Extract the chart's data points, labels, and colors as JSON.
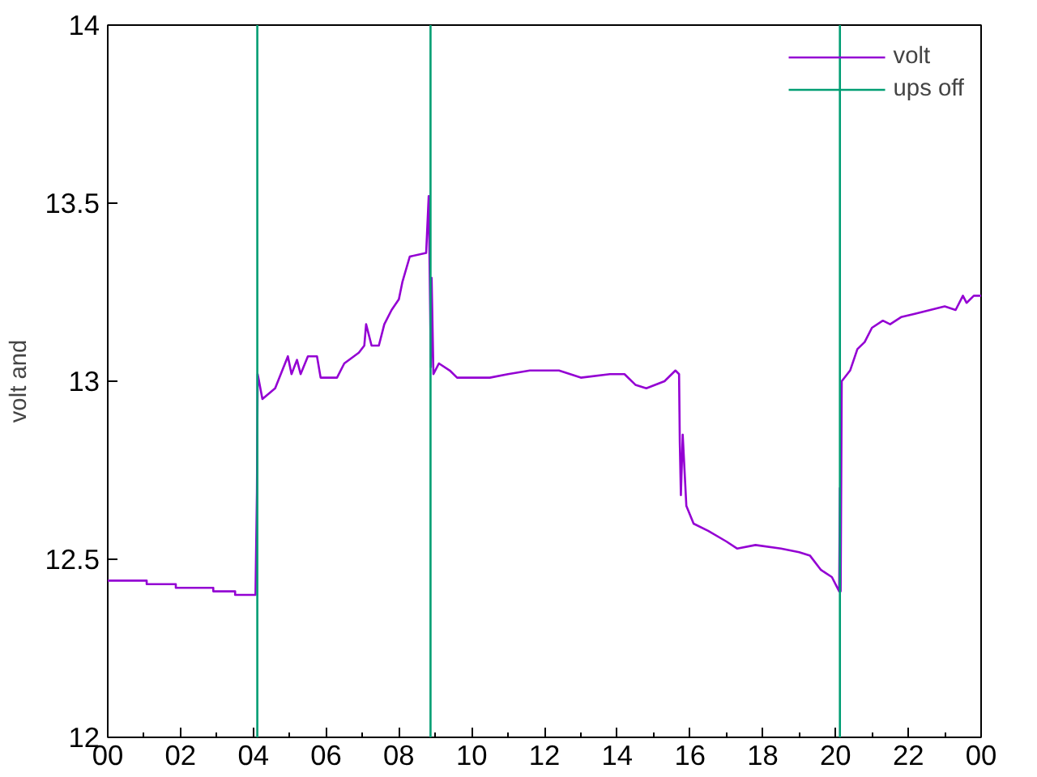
{
  "chart_data": {
    "type": "line",
    "ylabel": "volt and",
    "xlim": [
      0,
      24
    ],
    "ylim": [
      12,
      14
    ],
    "xticks": [
      {
        "value": 0,
        "label": "00"
      },
      {
        "value": 2,
        "label": "02"
      },
      {
        "value": 4,
        "label": "04"
      },
      {
        "value": 6,
        "label": "06"
      },
      {
        "value": 8,
        "label": "08"
      },
      {
        "value": 10,
        "label": "10"
      },
      {
        "value": 12,
        "label": "12"
      },
      {
        "value": 14,
        "label": "14"
      },
      {
        "value": 16,
        "label": "16"
      },
      {
        "value": 18,
        "label": "18"
      },
      {
        "value": 20,
        "label": "20"
      },
      {
        "value": 22,
        "label": "22"
      },
      {
        "value": 24,
        "label": "00"
      }
    ],
    "yticks": [
      12,
      12.5,
      13,
      13.5,
      14
    ],
    "grid": false,
    "legend": "top right",
    "series": [
      {
        "name": "volt",
        "color": "#9400d3",
        "x": [
          0,
          1.07,
          1.07,
          1.87,
          1.87,
          2.9,
          2.9,
          3.5,
          3.5,
          4.06,
          4.1,
          4.12,
          4.25,
          4.6,
          4.95,
          5.05,
          5.2,
          5.3,
          5.5,
          5.75,
          5.85,
          6.3,
          6.5,
          6.9,
          7.05,
          7.1,
          7.25,
          7.45,
          7.6,
          7.8,
          8.0,
          8.1,
          8.3,
          8.75,
          8.82,
          8.88,
          8.9,
          8.95,
          9.1,
          9.4,
          9.6,
          10.5,
          11.0,
          11.6,
          12.4,
          13.0,
          13.8,
          14.2,
          14.5,
          14.8,
          15.3,
          15.6,
          15.7,
          15.72,
          15.75,
          15.8,
          15.9,
          16.1,
          16.5,
          17.0,
          17.3,
          17.8,
          18.5,
          19.0,
          19.3,
          19.6,
          19.9,
          20.1,
          20.12,
          20.14,
          20.17,
          20.4,
          20.6,
          20.8,
          21.0,
          21.3,
          21.5,
          21.8,
          22.2,
          22.6,
          23.0,
          23.3,
          23.5,
          23.6,
          23.8,
          24.0
        ],
        "values": [
          12.44,
          12.44,
          12.43,
          12.43,
          12.42,
          12.42,
          12.41,
          12.41,
          12.4,
          12.4,
          12.69,
          13.02,
          12.95,
          12.98,
          13.07,
          13.02,
          13.06,
          13.02,
          13.07,
          13.07,
          13.01,
          13.01,
          13.05,
          13.08,
          13.1,
          13.16,
          13.1,
          13.1,
          13.16,
          13.2,
          13.23,
          13.28,
          13.35,
          13.36,
          13.52,
          13.04,
          13.29,
          13.02,
          13.05,
          13.03,
          13.01,
          13.01,
          13.02,
          13.03,
          13.03,
          13.01,
          13.02,
          13.02,
          12.99,
          12.98,
          13.0,
          13.03,
          13.02,
          12.83,
          12.68,
          12.85,
          12.65,
          12.6,
          12.58,
          12.55,
          12.53,
          12.54,
          12.53,
          12.52,
          12.51,
          12.47,
          12.45,
          12.41,
          12.7,
          12.41,
          13.0,
          13.03,
          13.09,
          13.11,
          13.15,
          13.17,
          13.16,
          13.18,
          13.19,
          13.2,
          13.21,
          13.2,
          13.24,
          13.22,
          13.24,
          13.24
        ]
      },
      {
        "name": "ups off",
        "color": "#009e73",
        "x": [
          4.11,
          4.11,
          null,
          8.87,
          8.87,
          null,
          20.12,
          20.12
        ],
        "values": [
          12,
          14,
          null,
          14,
          12,
          null,
          12,
          14
        ]
      }
    ]
  }
}
